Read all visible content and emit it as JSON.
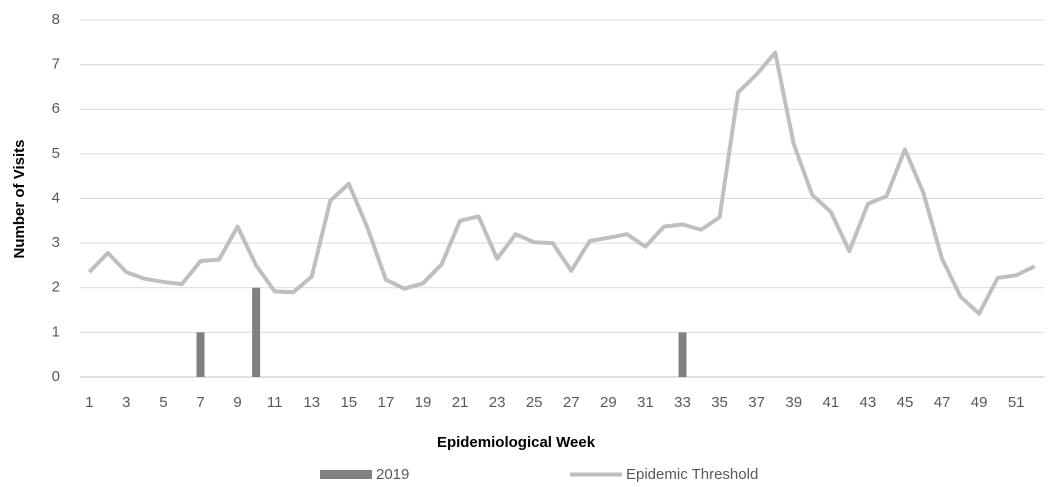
{
  "chart_data": {
    "type": "bar-line",
    "x_label": "Epidemiological Week",
    "y_label": "Number of Visits",
    "categories": [
      1,
      null,
      3,
      null,
      5,
      null,
      7,
      null,
      9,
      null,
      11,
      null,
      13,
      null,
      15,
      null,
      17,
      null,
      19,
      null,
      21,
      null,
      23,
      null,
      25,
      null,
      27,
      null,
      29,
      null,
      31,
      null,
      33,
      null,
      35,
      null,
      37,
      null,
      39,
      null,
      41,
      null,
      43,
      null,
      45,
      null,
      47,
      null,
      49,
      null,
      51,
      null
    ],
    "series": [
      {
        "name": "2019",
        "type": "bar",
        "color": "#808080",
        "values": [
          0,
          0,
          0,
          0,
          0,
          0,
          1,
          0,
          0,
          2,
          0,
          0,
          0,
          0,
          0,
          0,
          0,
          0,
          0,
          0,
          0,
          0,
          0,
          0,
          0,
          0,
          0,
          0,
          0,
          0,
          0,
          0,
          1,
          0,
          0,
          0,
          0,
          0,
          0,
          0,
          0,
          0,
          0,
          0,
          0,
          0,
          0,
          0,
          0,
          0,
          0,
          0
        ]
      },
      {
        "name": "Epidemic Threshold",
        "type": "line",
        "color": "#bfbfbf",
        "values": [
          2.35,
          2.78,
          2.35,
          2.2,
          2.13,
          2.08,
          2.6,
          2.63,
          3.37,
          2.5,
          1.92,
          1.9,
          2.25,
          3.95,
          4.33,
          3.35,
          2.18,
          1.98,
          2.1,
          2.52,
          3.5,
          3.6,
          2.65,
          3.2,
          3.02,
          3.0,
          2.38,
          3.05,
          3.12,
          3.2,
          2.92,
          3.37,
          3.42,
          3.3,
          3.58,
          6.38,
          6.78,
          7.27,
          5.22,
          4.08,
          3.7,
          2.82,
          3.88,
          4.05,
          5.1,
          4.12,
          2.65,
          1.8,
          1.42,
          2.22,
          2.28,
          2.48
        ]
      }
    ],
    "ylim": [
      0,
      8
    ],
    "yticks": [
      0,
      1,
      2,
      3,
      4,
      5,
      6,
      7,
      8
    ],
    "grid": true
  }
}
